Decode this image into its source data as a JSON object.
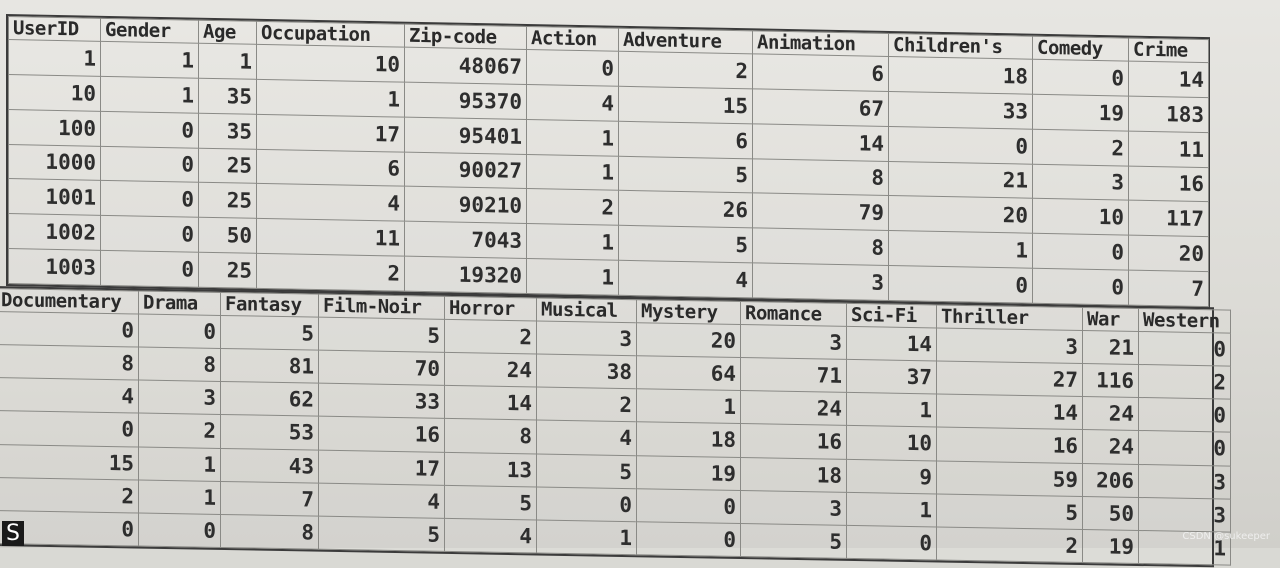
{
  "table1": {
    "headers": [
      "UserID",
      "Gender",
      "Age",
      "Occupation",
      "Zip-code",
      "Action",
      "Adventure",
      "Animation",
      "Children's",
      "Comedy",
      "Crime"
    ],
    "rows": [
      [
        "1",
        "1",
        "1",
        "10",
        "48067",
        "0",
        "2",
        "6",
        "18",
        "0",
        "14"
      ],
      [
        "10",
        "1",
        "35",
        "1",
        "95370",
        "4",
        "15",
        "67",
        "33",
        "19",
        "183"
      ],
      [
        "100",
        "0",
        "35",
        "17",
        "95401",
        "1",
        "6",
        "14",
        "0",
        "2",
        "11"
      ],
      [
        "1000",
        "0",
        "25",
        "6",
        "90027",
        "1",
        "5",
        "8",
        "21",
        "3",
        "16"
      ],
      [
        "1001",
        "0",
        "25",
        "4",
        "90210",
        "2",
        "26",
        "79",
        "20",
        "10",
        "117"
      ],
      [
        "1002",
        "0",
        "50",
        "11",
        "7043",
        "1",
        "5",
        "8",
        "1",
        "0",
        "20"
      ],
      [
        "1003",
        "0",
        "25",
        "2",
        "19320",
        "1",
        "4",
        "3",
        "0",
        "0",
        "7"
      ]
    ]
  },
  "table2": {
    "headers": [
      "Documentary",
      "Drama",
      "Fantasy",
      "Film-Noir",
      "Horror",
      "Musical",
      "Mystery",
      "Romance",
      "Sci-Fi",
      "Thriller",
      "War",
      "Western"
    ],
    "rows": [
      [
        "0",
        "0",
        "5",
        "5",
        "2",
        "3",
        "20",
        "3",
        "14",
        "3",
        "21",
        "0"
      ],
      [
        "8",
        "8",
        "81",
        "70",
        "24",
        "38",
        "64",
        "71",
        "37",
        "27",
        "116",
        "2"
      ],
      [
        "4",
        "3",
        "62",
        "33",
        "14",
        "2",
        "1",
        "24",
        "1",
        "14",
        "24",
        "0"
      ],
      [
        "0",
        "2",
        "53",
        "16",
        "8",
        "4",
        "18",
        "16",
        "10",
        "16",
        "24",
        "0"
      ],
      [
        "15",
        "1",
        "43",
        "17",
        "13",
        "5",
        "19",
        "18",
        "9",
        "59",
        "206",
        "3"
      ],
      [
        "2",
        "1",
        "7",
        "4",
        "5",
        "0",
        "0",
        "3",
        "1",
        "5",
        "50",
        "3"
      ],
      [
        "0",
        "0",
        "8",
        "5",
        "4",
        "1",
        "0",
        "5",
        "0",
        "2",
        "19",
        "1"
      ]
    ]
  },
  "footer": {
    "left_char": "S",
    "watermark": "CSDN @sukeeper"
  }
}
